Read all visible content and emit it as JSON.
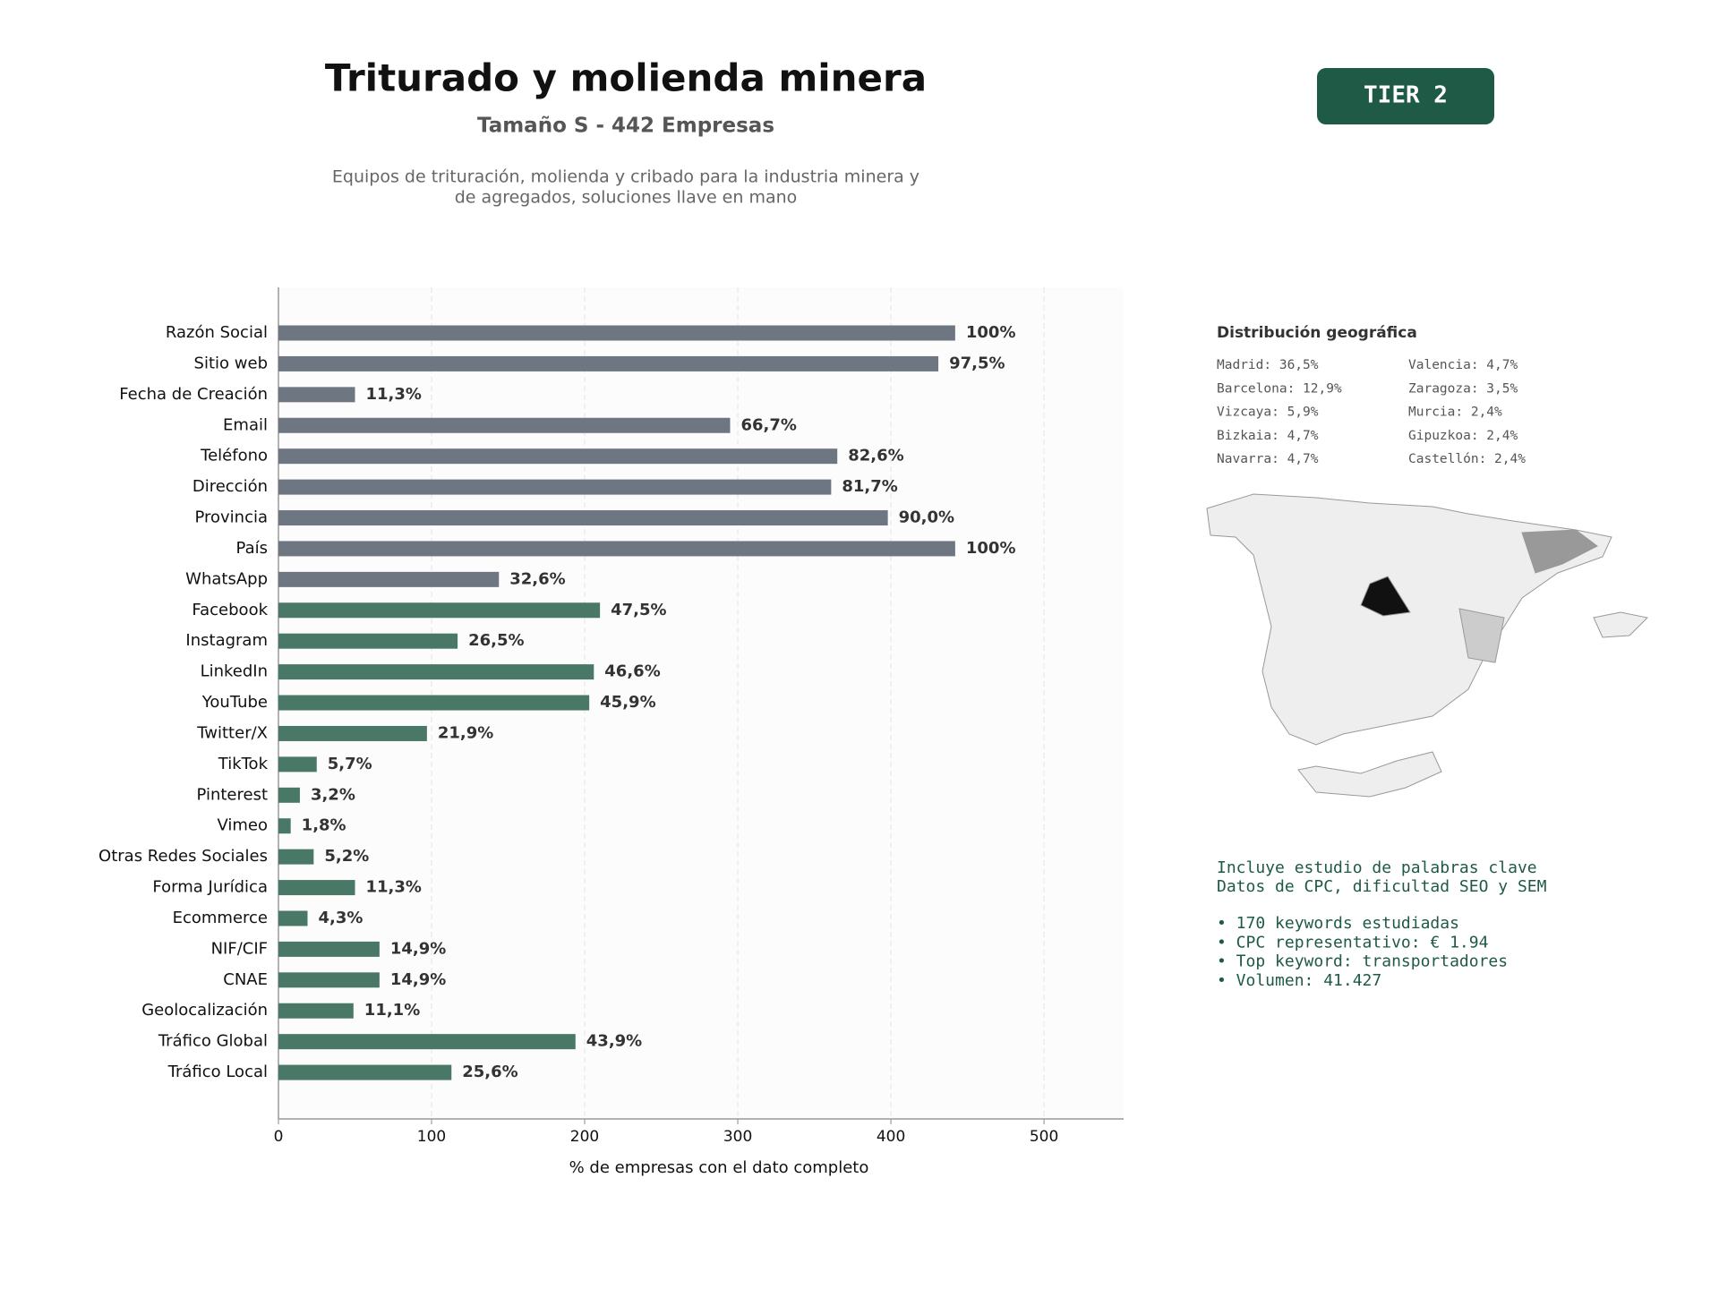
{
  "header": {
    "title": "Triturado y molienda minera",
    "subtitle": "Tamaño S - 442 Empresas",
    "description": [
      "Equipos de trituración, molienda y cribado para la industria minera y",
      "de agregados, soluciones llave en mano"
    ],
    "badge": "TIER 2"
  },
  "chart_data": {
    "type": "hbar",
    "xlabel": "% de empresas con el dato completo",
    "categories": [
      "Razón Social",
      "Sitio web",
      "Fecha de Creación",
      "Email",
      "Teléfono",
      "Dirección",
      "Provincia",
      "País",
      "WhatsApp",
      "Facebook",
      "Instagram",
      "LinkedIn",
      "YouTube",
      "Twitter/X",
      "TikTok",
      "Pinterest",
      "Vimeo",
      "Otras Redes Sociales",
      "Forma Jurídica",
      "Ecommerce",
      "NIF/CIF",
      "CNAE",
      "Geolocalización",
      "Tráfico Global",
      "Tráfico Local"
    ],
    "values": [
      442,
      431,
      50,
      295,
      365,
      361,
      398,
      442,
      144,
      210,
      117,
      206,
      203,
      97,
      25,
      14,
      8,
      23,
      50,
      19,
      66,
      66,
      49,
      194,
      113
    ],
    "value_labels": [
      "100%",
      "97,5%",
      "11,3%",
      "66,7%",
      "82,6%",
      "81,7%",
      "90,0%",
      "100%",
      "32,6%",
      "47,5%",
      "26,5%",
      "46,6%",
      "45,9%",
      "21,9%",
      "5,7%",
      "3,2%",
      "1,8%",
      "5,2%",
      "11,3%",
      "4,3%",
      "14,9%",
      "14,9%",
      "11,1%",
      "43,9%",
      "25,6%"
    ],
    "colors": [
      "#6e7781",
      "#6e7781",
      "#6e7781",
      "#6e7781",
      "#6e7781",
      "#6e7781",
      "#6e7781",
      "#6e7781",
      "#6e7781",
      "#4a7866",
      "#4a7866",
      "#4a7866",
      "#4a7866",
      "#4a7866",
      "#4a7866",
      "#4a7866",
      "#4a7866",
      "#4a7866",
      "#4a7866",
      "#4a7866",
      "#4a7866",
      "#4a7866",
      "#4a7866",
      "#4a7866",
      "#4a7866"
    ],
    "xlim": [
      0,
      552
    ],
    "xticks": [
      0,
      100,
      200,
      300,
      400,
      500
    ],
    "grid": true
  },
  "geo": {
    "title": "Distribución geográfica",
    "entries": [
      "Madrid: 36,5%",
      "Barcelona: 12,9%",
      "Vizcaya: 5,9%",
      "Bizkaia: 4,7%",
      "Navarra: 4,7%",
      "Valencia: 4,7%",
      "Zaragoza: 3,5%",
      "Murcia: 2,4%",
      "Gipuzkoa: 2,4%",
      "Castellón: 2,4%"
    ]
  },
  "info": {
    "intro": [
      "Incluye estudio de palabras clave",
      "Datos de CPC, dificultad SEO y SEM"
    ],
    "bullets": [
      "• 170 keywords estudiadas",
      "• CPC representativo: € 1.94",
      "• Top keyword: transportadores",
      "• Volumen: 41.427"
    ]
  }
}
